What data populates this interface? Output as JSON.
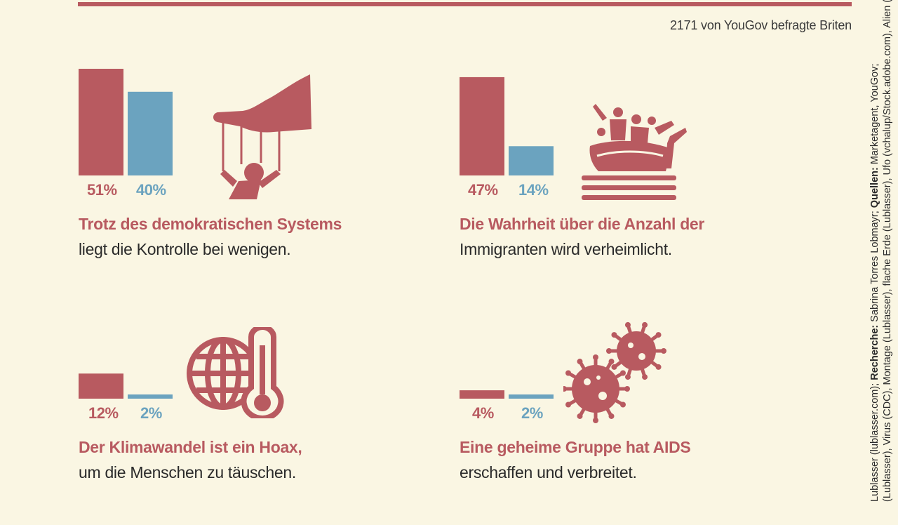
{
  "source_note": "2171 von YouGov befragte Briten",
  "colors": {
    "accent_red": "#b85a60",
    "accent_blue": "#6ba3bf",
    "background": "#faf6e3"
  },
  "panels": [
    {
      "headline": "Trotz des demokratischen Systems",
      "subline": "liegt die Kontrolle bei wenigen.",
      "label_red": "51%",
      "label_blue": "40%",
      "icon": "puppet-hand-icon"
    },
    {
      "headline": "Die Wahrheit über die Anzahl der",
      "subline": "Immigranten wird verheimlicht.",
      "label_red": "47%",
      "label_blue": "14%",
      "icon": "migrant-boat-icon"
    },
    {
      "headline": "Der Klimawandel ist ein Hoax,",
      "subline": "um die Menschen zu täuschen.",
      "label_red": "12%",
      "label_blue": "2%",
      "icon": "globe-thermometer-icon"
    },
    {
      "headline": "Eine geheime Gruppe hat AIDS",
      "subline": "erschaffen und verbreitet.",
      "label_red": "4%",
      "label_blue": "2%",
      "icon": "virus-icon"
    }
  ],
  "chart_data": [
    {
      "type": "bar",
      "categories": [
        "Trotz des demokratischen Systems liegt die Kontrolle bei wenigen."
      ],
      "series": [
        {
          "values": [
            51
          ]
        },
        {
          "values": [
            40
          ]
        }
      ],
      "ylim": [
        0,
        51
      ]
    },
    {
      "type": "bar",
      "categories": [
        "Die Wahrheit über die Anzahl der Immigranten wird verheimlicht."
      ],
      "series": [
        {
          "values": [
            47
          ]
        },
        {
          "values": [
            14
          ]
        }
      ],
      "ylim": [
        0,
        51
      ]
    },
    {
      "type": "bar",
      "categories": [
        "Der Klimawandel ist ein Hoax, um die Menschen zu täuschen."
      ],
      "series": [
        {
          "values": [
            12
          ]
        },
        {
          "values": [
            2
          ]
        }
      ],
      "ylim": [
        0,
        51
      ]
    },
    {
      "type": "bar",
      "categories": [
        "Eine geheime Gruppe hat AIDS erschaffen und verbreitet."
      ],
      "series": [
        {
          "values": [
            4
          ]
        },
        {
          "values": [
            2
          ]
        }
      ],
      "ylim": [
        0,
        51
      ]
    }
  ],
  "credits": {
    "line1_start": "Lublasser (lublasser.com); ",
    "line1_recherche_label": "Recherche:",
    "line1_recherche": " Sabrina Torres Lobmayr; ",
    "line1_quellen_label": "Quellen:",
    "line1_quellen": " Marketagent, YouGov;",
    "line2": "(Lublasser), Virus (CDC), Montage (Lublasser), flache Erde (Lublasser), Ufo (vchalup/Stock.adobe.com), Alien (Bert Folsom/"
  }
}
